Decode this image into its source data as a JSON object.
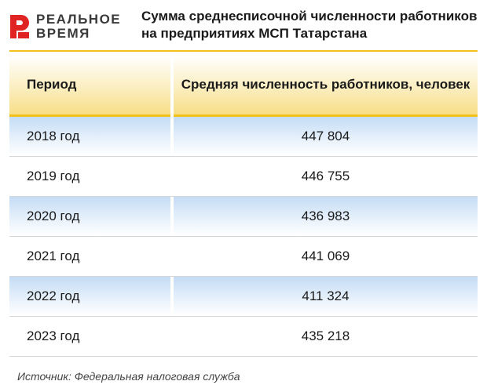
{
  "brand": {
    "line1": "РЕАЛЬНОЕ",
    "line2": "ВРЕМЯ",
    "accent_color": "#e02424"
  },
  "chart_data": {
    "type": "table",
    "title": "Сумма среднесписочной численности работников на предприятиях МСП Татарстана",
    "columns": [
      "Период",
      "Средняя численность работников, человек"
    ],
    "rows": [
      {
        "period": "2018 год",
        "value": "447 804"
      },
      {
        "period": "2019 год",
        "value": "446 755"
      },
      {
        "period": "2020 год",
        "value": "436 983"
      },
      {
        "period": "2021 год",
        "value": "441 069"
      },
      {
        "period": "2022 год",
        "value": "411 324"
      },
      {
        "period": "2023 год",
        "value": "435 218"
      }
    ],
    "source": "Источник: Федеральная налоговая служба"
  }
}
